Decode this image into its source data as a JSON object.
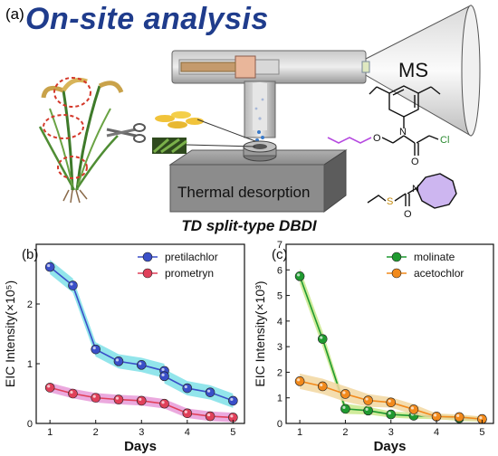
{
  "panel_a": {
    "label": "(a)",
    "title": "On-site analysis",
    "ms_label": "MS",
    "box_label": "Thermal desorption",
    "subtitle": "TD split-type DBDI",
    "molecule_labels": {
      "n": "N",
      "o": "O",
      "cl": "Cl",
      "s": "S",
      "o2": "O",
      "n2": "N",
      "o3": "O"
    }
  },
  "chart_data": [
    {
      "type": "line",
      "panel_label": "(b)",
      "ylabel": "EIC Intensity(×10⁵)",
      "xlabel": "Days",
      "x": [
        1,
        1.5,
        2,
        2.5,
        3,
        3.5,
        4,
        4.5,
        5
      ],
      "xlim": [
        0.7,
        5.25
      ],
      "ylim": [
        0,
        3.0
      ],
      "xticks": [
        1,
        2,
        3,
        4,
        5
      ],
      "yticks": [
        0,
        1,
        2
      ],
      "legend_position": "top-right",
      "series": [
        {
          "name": "pretilachlor",
          "color": "#3a4fc8",
          "band_color": "#7fe0e8",
          "values": [
            2.62,
            2.31,
            1.24,
            1.04,
            0.98,
            0.88,
            0.79,
            0.59,
            0.52,
            0.38
          ],
          "x": [
            1,
            1.5,
            2,
            2.5,
            3,
            3.5,
            3.5,
            4,
            4.5,
            5
          ],
          "band": [
            0.12,
            0.12,
            0.12,
            0.12,
            0.12,
            0.12,
            0.12,
            0.12,
            0.12,
            0.12
          ]
        },
        {
          "name": "prometryn",
          "color": "#e0405a",
          "band_color": "#e89ad8",
          "values": [
            0.6,
            0.5,
            0.43,
            0.4,
            0.38,
            0.33,
            0.17,
            0.12,
            0.1
          ],
          "x": [
            1,
            1.5,
            2,
            2.5,
            3,
            3.5,
            4,
            4.5,
            5
          ],
          "band": [
            0.08,
            0.08,
            0.08,
            0.08,
            0.08,
            0.08,
            0.08,
            0.08,
            0.08
          ]
        }
      ]
    },
    {
      "type": "line",
      "panel_label": "(c)",
      "ylabel": "EIC Intensity(×10³)",
      "xlabel": "Days",
      "xlim": [
        0.7,
        5.25
      ],
      "ylim": [
        0,
        7
      ],
      "xticks": [
        1,
        2,
        3,
        4,
        5
      ],
      "yticks": [
        0,
        1,
        2,
        3,
        4,
        5,
        6,
        7
      ],
      "legend_position": "top-right",
      "series": [
        {
          "name": "molinate",
          "color": "#1f9a30",
          "band_color": "#c8e88a",
          "x": [
            1,
            1.5,
            2,
            2.5,
            3,
            3.5,
            4,
            4.5,
            5
          ],
          "values": [
            5.75,
            3.3,
            0.57,
            0.5,
            0.35,
            0.3,
            0.27,
            0.2,
            0.17
          ],
          "band": [
            0.3,
            0.3,
            0.2,
            0.15,
            0.12,
            0.12,
            0.1,
            0.1,
            0.1
          ]
        },
        {
          "name": "acetochlor",
          "color": "#f28a1c",
          "band_color": "#f2d7a0",
          "x": [
            1,
            1.5,
            2,
            2.5,
            3,
            3.5,
            4,
            4.5,
            5
          ],
          "values": [
            1.65,
            1.45,
            1.15,
            0.9,
            0.82,
            0.55,
            0.27,
            0.25,
            0.17
          ],
          "band": [
            0.3,
            0.3,
            0.3,
            0.25,
            0.2,
            0.2,
            0.12,
            0.1,
            0.1
          ]
        }
      ]
    }
  ]
}
